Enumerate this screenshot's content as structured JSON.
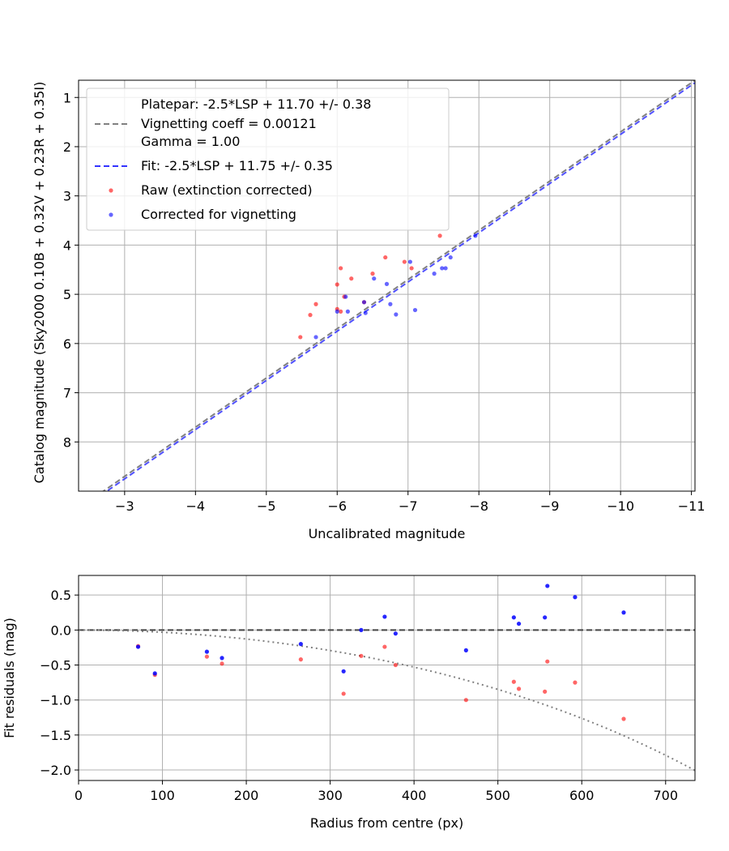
{
  "chart_data": [
    {
      "type": "scatter",
      "xlabel": "Uncalibrated magnitude",
      "ylabel": "Catalog magnitude (Sky2000 0.10B + 0.32V + 0.23R + 0.35I)",
      "xlim": [
        -2.35,
        -11.05
      ],
      "ylim": [
        9.0,
        0.65
      ],
      "x_inverted": true,
      "y_inverted": true,
      "grid": true,
      "legend_position": "upper-left",
      "x_ticks": [
        -3,
        -4,
        -5,
        -6,
        -7,
        -8,
        -9,
        -10,
        -11
      ],
      "y_ticks": [
        1,
        2,
        3,
        4,
        5,
        6,
        7,
        8
      ],
      "x_tick_labels": [
        "−3",
        "−4",
        "−5",
        "−6",
        "−7",
        "−8",
        "−9",
        "−10",
        "−11"
      ],
      "y_tick_labels": [
        "1",
        "2",
        "3",
        "4",
        "5",
        "6",
        "7",
        "8"
      ],
      "lines": [
        {
          "name": "Platepar: -2.5*LSP + 11.70 +/- 0.38",
          "color": "#000000",
          "style": "none",
          "slope": 1,
          "intercept": 11.7
        },
        {
          "name": "Vignetting coeff = 0.00121",
          "color": "#808080",
          "style": "dashed",
          "slope": 1,
          "intercept": 11.7
        },
        {
          "name": "Gamma = 1.00",
          "color": "#000000",
          "style": "none",
          "slope": 1,
          "intercept": 11.7
        },
        {
          "name": "Fit: -2.5*LSP + 11.75 +/- 0.35",
          "color": "#3333ff",
          "style": "dashed",
          "slope": 1,
          "intercept": 11.75
        }
      ],
      "series": [
        {
          "name": "Raw (extinction corrected)",
          "color": "#ff0000",
          "points": [
            [
              -5.48,
              5.87
            ],
            [
              -5.62,
              5.42
            ],
            [
              -5.7,
              5.2
            ],
            [
              -6.0,
              5.3
            ],
            [
              -6.0,
              4.8
            ],
            [
              -6.05,
              5.35
            ],
            [
              -6.05,
              4.47
            ],
            [
              -6.1,
              5.05
            ],
            [
              -6.2,
              4.68
            ],
            [
              -6.38,
              5.16
            ],
            [
              -6.5,
              4.58
            ],
            [
              -6.68,
              4.25
            ],
            [
              -6.95,
              4.34
            ],
            [
              -7.05,
              4.47
            ],
            [
              -7.45,
              3.81
            ]
          ]
        },
        {
          "name": "Corrected for vignetting",
          "color": "#0000ff",
          "points": [
            [
              -5.7,
              5.87
            ],
            [
              -6.0,
              5.35
            ],
            [
              -6.15,
              5.35
            ],
            [
              -6.12,
              5.05
            ],
            [
              -6.38,
              5.16
            ],
            [
              -6.4,
              5.38
            ],
            [
              -6.52,
              4.68
            ],
            [
              -6.7,
              4.79
            ],
            [
              -6.75,
              5.2
            ],
            [
              -6.83,
              5.41
            ],
            [
              -7.03,
              4.34
            ],
            [
              -7.1,
              5.32
            ],
            [
              -7.37,
              4.58
            ],
            [
              -7.48,
              4.47
            ],
            [
              -7.53,
              4.47
            ],
            [
              -7.6,
              4.25
            ],
            [
              -7.95,
              3.81
            ]
          ]
        }
      ]
    },
    {
      "type": "scatter",
      "xlabel": "Radius from centre (px)",
      "ylabel": "Fit residuals (mag)",
      "xlim": [
        0,
        735
      ],
      "ylim": [
        -2.15,
        0.78
      ],
      "grid": true,
      "x_ticks": [
        0,
        100,
        200,
        300,
        400,
        500,
        600,
        700
      ],
      "y_ticks": [
        0.5,
        0.0,
        -0.5,
        -1.0,
        -1.5,
        -2.0
      ],
      "x_tick_labels": [
        "0",
        "100",
        "200",
        "300",
        "400",
        "500",
        "600",
        "700"
      ],
      "y_tick_labels": [
        "0.5",
        "0.0",
        "−0.5",
        "−1.0",
        "−1.5",
        "−2.0"
      ],
      "reference_line": {
        "y": 0,
        "color": "#444444",
        "style": "dashed"
      },
      "vignetting_curve": {
        "color": "#808080",
        "style": "dotted",
        "formula": "-2.5*log10(cos(0.00121*r)^4)"
      },
      "series": [
        {
          "name": "Raw (extinction corrected)",
          "color": "#ff0000",
          "points": [
            [
              71,
              -0.23
            ],
            [
              91,
              -0.64
            ],
            [
              153,
              -0.38
            ],
            [
              171,
              -0.48
            ],
            [
              265,
              -0.42
            ],
            [
              316,
              -0.91
            ],
            [
              337,
              -0.37
            ],
            [
              365,
              -0.24
            ],
            [
              378,
              -0.5
            ],
            [
              462,
              -1.0
            ],
            [
              519,
              -0.74
            ],
            [
              525,
              -0.84
            ],
            [
              556,
              -0.88
            ],
            [
              559,
              -0.45
            ],
            [
              592,
              -0.75
            ],
            [
              650,
              -1.27
            ]
          ]
        },
        {
          "name": "Corrected for vignetting",
          "color": "#0000ff",
          "points": [
            [
              71,
              -0.24
            ],
            [
              91,
              -0.62
            ],
            [
              153,
              -0.31
            ],
            [
              171,
              -0.4
            ],
            [
              265,
              -0.2
            ],
            [
              316,
              -0.59
            ],
            [
              337,
              0.0
            ],
            [
              365,
              0.19
            ],
            [
              378,
              -0.05
            ],
            [
              462,
              -0.29
            ],
            [
              519,
              0.18
            ],
            [
              525,
              0.09
            ],
            [
              556,
              0.18
            ],
            [
              559,
              0.63
            ],
            [
              592,
              0.47
            ],
            [
              650,
              0.25
            ]
          ]
        }
      ]
    }
  ]
}
